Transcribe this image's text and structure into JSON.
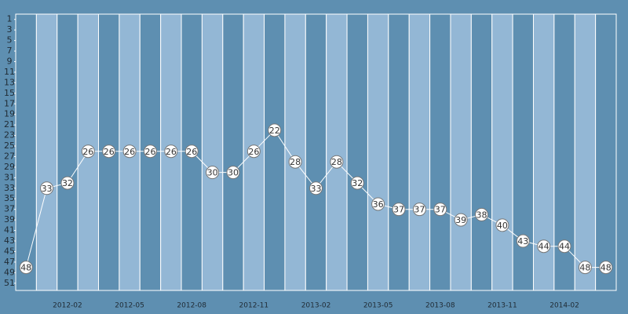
{
  "chart_data": {
    "type": "line",
    "categories": [
      null,
      null,
      "2012-02",
      null,
      null,
      "2012-05",
      null,
      null,
      "2012-08",
      null,
      null,
      "2012-11",
      null,
      null,
      "2013-02",
      null,
      null,
      "2013-05",
      null,
      null,
      "2013-08",
      null,
      null,
      "2013-11",
      null,
      null,
      "2014-02",
      null,
      null
    ],
    "values": [
      48,
      33,
      32,
      26,
      26,
      26,
      26,
      26,
      26,
      30,
      30,
      26,
      22,
      28,
      33,
      28,
      32,
      36,
      37,
      37,
      37,
      39,
      38,
      40,
      43,
      44,
      44,
      48,
      48
    ],
    "color": "#ffffff",
    "y_inverted": true,
    "ylim": [
      0,
      52
    ],
    "yticks": [
      1,
      3,
      5,
      7,
      9,
      11,
      13,
      15,
      17,
      19,
      21,
      23,
      25,
      27,
      29,
      31,
      33,
      35,
      37,
      39,
      41,
      43,
      45,
      47,
      49,
      51
    ]
  }
}
